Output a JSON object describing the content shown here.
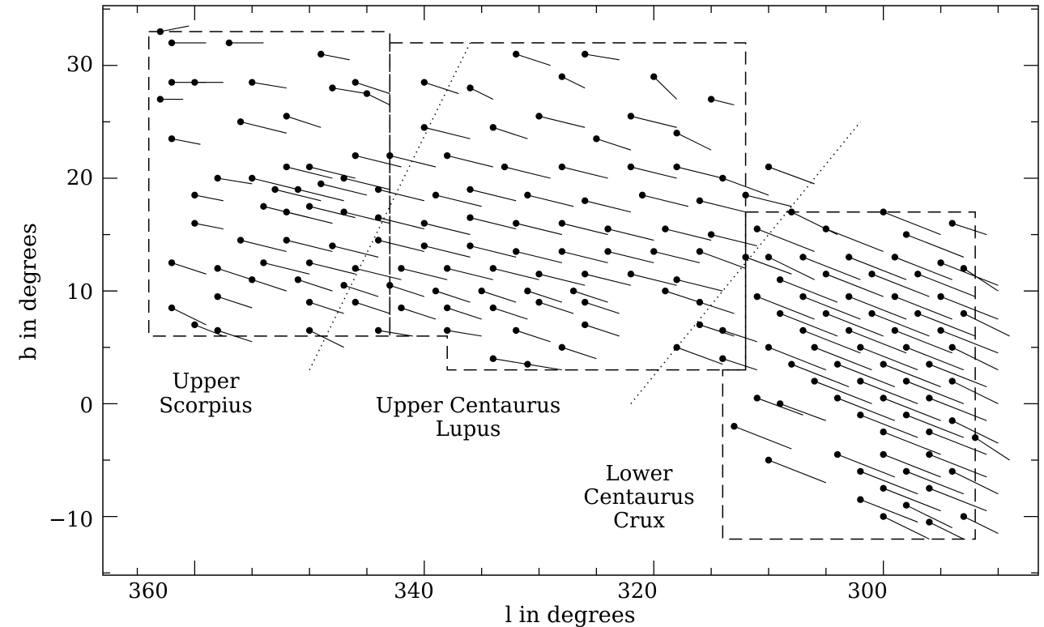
{
  "chart_data": {
    "type": "scatter",
    "title": "",
    "xlabel": "l in degrees",
    "ylabel": "b in degrees",
    "xlim": [
      368,
      286.5
    ],
    "ylim": [
      -15.2,
      35.3
    ],
    "x_reversed": true,
    "x_ticks": [
      360,
      340,
      320,
      300
    ],
    "y_ticks": [
      -10,
      0,
      10,
      20,
      30
    ],
    "x_tick_labels": [
      "360",
      "340",
      "320",
      "300"
    ],
    "y_tick_labels": [
      "−10",
      "0",
      "10",
      "20",
      "30"
    ],
    "grid": false,
    "legend": "none",
    "regions": [
      {
        "name": "Upper Scorpius",
        "label_lines": [
          "Upper",
          "Scorpius"
        ],
        "outline": "dashed",
        "vertices": [
          [
            364,
            33
          ],
          [
            343,
            33
          ],
          [
            343,
            6
          ],
          [
            364,
            6
          ]
        ]
      },
      {
        "name": "Upper Centaurus Lupus",
        "label_lines": [
          "Upper Centaurus",
          "Lupus"
        ],
        "outline": "dashed",
        "vertices": [
          [
            343,
            32
          ],
          [
            312,
            32
          ],
          [
            312,
            3
          ],
          [
            338,
            3
          ],
          [
            338,
            6
          ],
          [
            343,
            6
          ]
        ]
      },
      {
        "name": "Lower Centaurus Crux",
        "label_lines": [
          "Lower",
          "Centaurus",
          "Crux"
        ],
        "outline": "dashed",
        "vertices": [
          [
            312,
            17
          ],
          [
            292,
            17
          ],
          [
            292,
            -12
          ],
          [
            314,
            -12
          ],
          [
            314,
            3
          ],
          [
            312,
            3
          ]
        ]
      }
    ],
    "boundary_lines": [
      {
        "style": "dotted",
        "from": [
          350,
          3
        ],
        "to": [
          336,
          32
        ]
      },
      {
        "style": "dotted",
        "from": [
          322,
          0
        ],
        "to": [
          302,
          25
        ]
      }
    ],
    "vector_scale": 0.5,
    "series": [
      {
        "marker": "circle",
        "columns": [
          "l",
          "b",
          "dl",
          "db"
        ],
        "points": [
          [
            363,
            33,
            -2.5,
            0.5
          ],
          [
            362,
            32,
            -3,
            0
          ],
          [
            357,
            32,
            -3,
            0
          ],
          [
            349,
            31,
            -2.5,
            -0.5
          ],
          [
            332,
            31,
            -3,
            -1
          ],
          [
            326,
            31,
            -3,
            -0.5
          ],
          [
            362,
            28.5,
            -3,
            0
          ],
          [
            360,
            28.5,
            -2.5,
            0
          ],
          [
            355,
            28.5,
            -3,
            -0.5
          ],
          [
            346,
            28.5,
            -3,
            -1
          ],
          [
            340,
            28.5,
            -3,
            -1
          ],
          [
            336,
            28,
            -2,
            -1
          ],
          [
            328,
            29,
            -2,
            -1
          ],
          [
            320,
            29,
            -2,
            -2
          ],
          [
            315,
            27,
            -2,
            -0.5
          ],
          [
            363,
            27,
            -2,
            0
          ],
          [
            348,
            28,
            -3,
            -0.5
          ],
          [
            345,
            27.5,
            -2,
            -1
          ],
          [
            362,
            23.5,
            -2.5,
            -0.5
          ],
          [
            356,
            25,
            -4,
            -1
          ],
          [
            352,
            25.5,
            -3,
            -1
          ],
          [
            340,
            24.5,
            -4,
            -1
          ],
          [
            334,
            24.5,
            -3,
            -1
          ],
          [
            330,
            25.5,
            -4,
            -1
          ],
          [
            322,
            25.5,
            -4,
            -1
          ],
          [
            325,
            23.5,
            -3,
            -1
          ],
          [
            318,
            24,
            -3,
            -1.5
          ],
          [
            352,
            21,
            -4,
            -1
          ],
          [
            350,
            21,
            -4,
            -1
          ],
          [
            346,
            22,
            -4,
            -1
          ],
          [
            343,
            22,
            -4,
            -1
          ],
          [
            338,
            22,
            -4,
            -1
          ],
          [
            333,
            21,
            -4,
            -1
          ],
          [
            328,
            21,
            -4,
            -1
          ],
          [
            322,
            21,
            -4,
            -1
          ],
          [
            318,
            21,
            -4,
            -1
          ],
          [
            314,
            20,
            -4,
            -1.5
          ],
          [
            310,
            21,
            -4,
            -1.5
          ],
          [
            358,
            20,
            -3,
            -0.5
          ],
          [
            355,
            20,
            -4,
            -1
          ],
          [
            353,
            19,
            -4,
            -1
          ],
          [
            351,
            19,
            -4,
            -1
          ],
          [
            349,
            19.5,
            -4,
            -1
          ],
          [
            347,
            20,
            -4,
            -1
          ],
          [
            344,
            19,
            -4,
            -1
          ],
          [
            339,
            18.5,
            -4,
            -1
          ],
          [
            336,
            19,
            -4,
            -1
          ],
          [
            331,
            18.5,
            -4,
            -1
          ],
          [
            326,
            18,
            -4,
            -1
          ],
          [
            321,
            18.5,
            -4,
            -1
          ],
          [
            316,
            18,
            -4,
            -1
          ],
          [
            312,
            18.5,
            -4,
            -1
          ],
          [
            360,
            18.5,
            -2.5,
            -0.5
          ],
          [
            354,
            17.5,
            -4,
            -1
          ],
          [
            352,
            17,
            -4,
            -1
          ],
          [
            350,
            17.5,
            -4,
            -1
          ],
          [
            347,
            17,
            -4,
            -1
          ],
          [
            344,
            16.5,
            -4,
            -1
          ],
          [
            340,
            16,
            -4,
            -1
          ],
          [
            336,
            16.5,
            -4,
            -1
          ],
          [
            332,
            16,
            -4,
            -1
          ],
          [
            328,
            16,
            -4,
            -1
          ],
          [
            324,
            15.5,
            -4,
            -1
          ],
          [
            319,
            15.5,
            -4,
            -1
          ],
          [
            315,
            15,
            -4,
            -1
          ],
          [
            360,
            16,
            -2.5,
            -0.5
          ],
          [
            356,
            14.5,
            -4,
            -1
          ],
          [
            352,
            14.5,
            -4,
            -1
          ],
          [
            348,
            14,
            -4,
            -1
          ],
          [
            344,
            14.5,
            -4,
            -1
          ],
          [
            340,
            14,
            -4,
            -1
          ],
          [
            336,
            14,
            -4,
            -1
          ],
          [
            332,
            13.5,
            -4,
            -1
          ],
          [
            328,
            13.5,
            -4,
            -1
          ],
          [
            324,
            13.5,
            -4,
            -1
          ],
          [
            320,
            13.5,
            -4,
            -1
          ],
          [
            316,
            13.5,
            -4,
            -1.5
          ],
          [
            312,
            13,
            -4,
            -1.5
          ],
          [
            362,
            12.5,
            -3,
            -1
          ],
          [
            358,
            12,
            -3,
            -1
          ],
          [
            354,
            12.5,
            -4,
            -1
          ],
          [
            350,
            12.5,
            -4,
            -1
          ],
          [
            346,
            12,
            -4,
            -1
          ],
          [
            342,
            12,
            -4,
            -1
          ],
          [
            338,
            12,
            -4,
            -1
          ],
          [
            334,
            12,
            -4,
            -1
          ],
          [
            330,
            11.5,
            -4,
            -1
          ],
          [
            326,
            11.5,
            -4,
            -1
          ],
          [
            322,
            11.5,
            -4,
            -1
          ],
          [
            318,
            11,
            -4,
            -1
          ],
          [
            355,
            11,
            -3,
            -1
          ],
          [
            351,
            11,
            -3,
            -1
          ],
          [
            347,
            10.5,
            -3,
            -1
          ],
          [
            343,
            10.5,
            -3,
            -1
          ],
          [
            339,
            10,
            -3,
            -1
          ],
          [
            335,
            10,
            -3,
            -1
          ],
          [
            331,
            10,
            -3,
            -1
          ],
          [
            327,
            10,
            -3,
            -1
          ],
          [
            319,
            10,
            -3,
            -1
          ],
          [
            358,
            9.5,
            -3,
            -1
          ],
          [
            350,
            9,
            -3,
            -1
          ],
          [
            346,
            9,
            -3,
            -1
          ],
          [
            342,
            8.5,
            -3,
            -1
          ],
          [
            338,
            8.5,
            -3,
            -1
          ],
          [
            334,
            8.5,
            -3,
            -1
          ],
          [
            330,
            9,
            -3,
            -1
          ],
          [
            326,
            9,
            -3,
            -1
          ],
          [
            316,
            9,
            -3,
            -1
          ],
          [
            362,
            8.5,
            -3,
            -1.5
          ],
          [
            360,
            7,
            -2.5,
            -1
          ],
          [
            358,
            6.5,
            -3,
            -1
          ],
          [
            350,
            6.5,
            -3,
            -1.5
          ],
          [
            344,
            6.5,
            -3,
            -0.5
          ],
          [
            338,
            6.5,
            -3,
            -0.5
          ],
          [
            332,
            6.5,
            -3,
            -1
          ],
          [
            326,
            7,
            -3,
            -1
          ],
          [
            316,
            7,
            -3,
            -1
          ],
          [
            314,
            6.5,
            -3,
            -1
          ],
          [
            334,
            4,
            -3,
            -0.5
          ],
          [
            331,
            3.5,
            -3,
            -0.5
          ],
          [
            328,
            5,
            -3,
            -1
          ],
          [
            318,
            5,
            -4,
            -1.5
          ],
          [
            314,
            4,
            -3,
            -1
          ],
          [
            308,
            17,
            -4,
            -2
          ],
          [
            300,
            17,
            -5,
            -2
          ],
          [
            305,
            15.5,
            -5,
            -2
          ],
          [
            298,
            15,
            -5,
            -2
          ],
          [
            294,
            16,
            -3,
            -1
          ],
          [
            311,
            15.5,
            -5,
            -2
          ],
          [
            310,
            13,
            -4,
            -2
          ],
          [
            307,
            13,
            -5,
            -2
          ],
          [
            303,
            13,
            -5,
            -2
          ],
          [
            299,
            13,
            -5,
            -2
          ],
          [
            295,
            12.5,
            -5,
            -2
          ],
          [
            309,
            11,
            -5,
            -2
          ],
          [
            305,
            11.5,
            -5,
            -2
          ],
          [
            301,
            11.5,
            -5,
            -2
          ],
          [
            297,
            11.5,
            -5,
            -2
          ],
          [
            293,
            12,
            -3,
            -2
          ],
          [
            311,
            9.5,
            -5,
            -2
          ],
          [
            307,
            9.5,
            -5,
            -2
          ],
          [
            303,
            9.5,
            -5,
            -2
          ],
          [
            299,
            9.5,
            -5,
            -2
          ],
          [
            295,
            9.5,
            -5,
            -2
          ],
          [
            309,
            8,
            -5,
            -2
          ],
          [
            305,
            8,
            -5,
            -2
          ],
          [
            301,
            8,
            -5,
            -2
          ],
          [
            297,
            8,
            -5,
            -2
          ],
          [
            293,
            8,
            -4,
            -2
          ],
          [
            307,
            6.5,
            -5,
            -2
          ],
          [
            303,
            6.5,
            -5,
            -2
          ],
          [
            299,
            6.5,
            -5,
            -2
          ],
          [
            295,
            6.5,
            -5,
            -2
          ],
          [
            310,
            5,
            -5,
            -2
          ],
          [
            306,
            5,
            -5,
            -2
          ],
          [
            302,
            5,
            -5,
            -2
          ],
          [
            298,
            5,
            -5,
            -2
          ],
          [
            294,
            5,
            -4,
            -2
          ],
          [
            308,
            3.5,
            -5,
            -2
          ],
          [
            304,
            3.5,
            -5,
            -2
          ],
          [
            300,
            3.5,
            -5,
            -2
          ],
          [
            296,
            3.5,
            -5,
            -2
          ],
          [
            306,
            2,
            -5,
            -2
          ],
          [
            302,
            2,
            -5,
            -2
          ],
          [
            298,
            2,
            -5,
            -2
          ],
          [
            294,
            2,
            -4,
            -2
          ],
          [
            304,
            0.5,
            -5,
            -2
          ],
          [
            300,
            0.5,
            -5,
            -2
          ],
          [
            296,
            0.5,
            -5,
            -2
          ],
          [
            311,
            0.5,
            -4,
            -1.5
          ],
          [
            309,
            0,
            -4,
            -1.5
          ],
          [
            302,
            -1,
            -5,
            -2
          ],
          [
            298,
            -1,
            -5,
            -2
          ],
          [
            294,
            -1.5,
            -4,
            -2
          ],
          [
            300,
            -2.5,
            -5,
            -2
          ],
          [
            296,
            -2.5,
            -5,
            -2
          ],
          [
            292,
            -3,
            -3,
            -2
          ],
          [
            304,
            -4.5,
            -5,
            -2
          ],
          [
            300,
            -4.5,
            -5,
            -2
          ],
          [
            296,
            -4.5,
            -5,
            -2
          ],
          [
            302,
            -6,
            -5,
            -2
          ],
          [
            298,
            -6,
            -5,
            -2
          ],
          [
            294,
            -6,
            -4,
            -2
          ],
          [
            300,
            -7.5,
            -5,
            -2
          ],
          [
            296,
            -7.5,
            -5,
            -2
          ],
          [
            302,
            -8.5,
            -5,
            -2
          ],
          [
            298,
            -9,
            -4,
            -2
          ],
          [
            300,
            -10,
            -4,
            -2
          ],
          [
            296,
            -10.5,
            -3,
            -1.5
          ],
          [
            293,
            -10,
            -3,
            -1.5
          ],
          [
            313,
            -2,
            -5,
            -2
          ],
          [
            310,
            -5,
            -5,
            -2
          ]
        ]
      }
    ]
  }
}
